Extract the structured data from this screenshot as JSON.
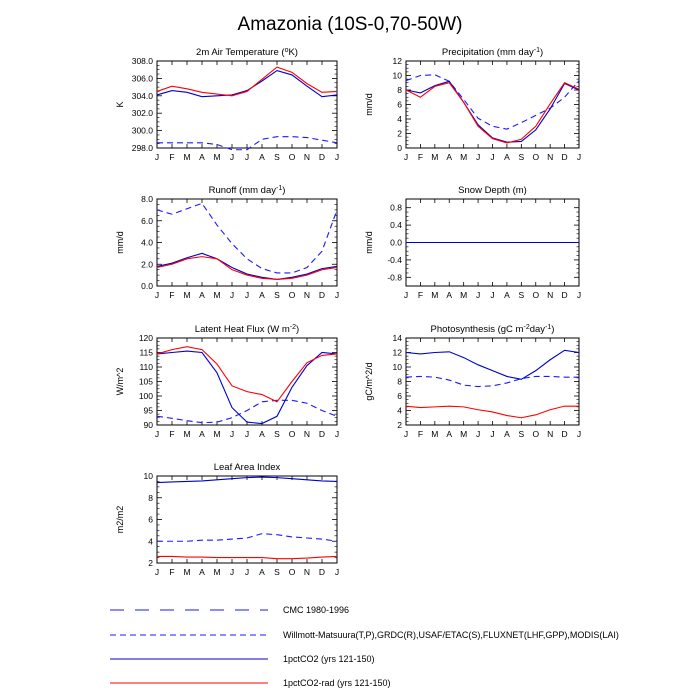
{
  "page": {
    "title": "Amazonia (10S-0,70-50W)"
  },
  "months": [
    "J",
    "F",
    "M",
    "A",
    "M",
    "J",
    "J",
    "A",
    "S",
    "O",
    "N",
    "D",
    "J"
  ],
  "legend": [
    {
      "label": "CMC 1980-1996",
      "color": "#1a1aff",
      "dash": "long"
    },
    {
      "label": "Willmott-Matsuura(T,P),GRDC(R),USAF/ETAC(S),FLUXNET(LHF,GPP),MODIS(LAI)",
      "color": "#1a1aff",
      "dash": "short"
    },
    {
      "label": "1pctCO2 (yrs 121-150)",
      "color": "#0000cc",
      "dash": "solid"
    },
    {
      "label": "1pctCO2-rad (yrs 121-150)",
      "color": "#ff0000",
      "dash": "solid"
    }
  ],
  "chart_data": [
    {
      "type": "line",
      "title": "2m Air Temperature (°K)",
      "title_main": "2m Air Temperature (",
      "title_sup": "o",
      "title_tail": "K)",
      "ylabel": "K",
      "ylim": [
        298,
        308
      ],
      "yticks": [
        298.0,
        300.0,
        302.0,
        304.0,
        306.0,
        308.0
      ],
      "ytick_labels": [
        "298.0",
        "300.0",
        "302.0",
        "304.0",
        "306.0",
        "308.0"
      ],
      "series": [
        {
          "color": "#1a1aff",
          "dash": "short",
          "values": [
            298.6,
            298.6,
            298.6,
            298.6,
            298.4,
            297.8,
            297.8,
            299.0,
            299.3,
            299.3,
            299.2,
            298.9,
            298.6
          ]
        },
        {
          "color": "#0000cc",
          "dash": "solid",
          "values": [
            304.1,
            304.6,
            304.4,
            303.9,
            304.0,
            304.1,
            304.6,
            305.7,
            306.9,
            306.4,
            305.1,
            303.9,
            304.1
          ]
        },
        {
          "color": "#ff0000",
          "dash": "solid",
          "values": [
            304.5,
            305.1,
            304.8,
            304.4,
            304.2,
            304.0,
            304.5,
            305.9,
            307.3,
            306.7,
            305.4,
            304.4,
            304.5
          ]
        }
      ]
    },
    {
      "type": "line",
      "title": "Precipitation (mm day-1)",
      "title_main": "Precipitation (mm day",
      "title_sup": "-1",
      "title_tail": ")",
      "ylabel": "mm/d",
      "ylim": [
        0,
        12
      ],
      "yticks": [
        0,
        2,
        4,
        6,
        8,
        10,
        12
      ],
      "ytick_labels": [
        "0",
        "2",
        "4",
        "6",
        "8",
        "10",
        "12"
      ],
      "series": [
        {
          "color": "#1a1aff",
          "dash": "short",
          "values": [
            9.3,
            10.0,
            10.1,
            9.2,
            6.7,
            4.1,
            3.0,
            2.6,
            3.5,
            4.5,
            5.5,
            7.0,
            9.3
          ]
        },
        {
          "color": "#0000cc",
          "dash": "solid",
          "values": [
            8.0,
            7.6,
            8.6,
            9.2,
            6.3,
            3.2,
            1.4,
            0.8,
            0.9,
            2.5,
            5.4,
            8.9,
            8.0
          ]
        },
        {
          "color": "#ff0000",
          "dash": "solid",
          "values": [
            8.0,
            7.0,
            8.5,
            9.0,
            6.3,
            3.0,
            1.3,
            0.7,
            1.2,
            3.0,
            6.1,
            9.0,
            8.1
          ]
        }
      ]
    },
    {
      "type": "line",
      "title": "Runoff (mm day-1)",
      "title_main": "Runoff (mm day",
      "title_sup": "-1",
      "title_tail": ")",
      "ylabel": "mm/d",
      "ylim": [
        0,
        8
      ],
      "yticks": [
        0,
        2,
        4,
        6,
        8
      ],
      "ytick_labels": [
        "0.0",
        "2.0",
        "4.0",
        "6.0",
        "8.0"
      ],
      "series": [
        {
          "color": "#1a1aff",
          "dash": "short",
          "values": [
            7.0,
            6.6,
            7.1,
            7.6,
            5.6,
            3.9,
            2.5,
            1.6,
            1.2,
            1.2,
            1.7,
            3.2,
            7.0
          ]
        },
        {
          "color": "#0000cc",
          "dash": "solid",
          "values": [
            1.8,
            2.1,
            2.6,
            3.0,
            2.5,
            1.7,
            1.1,
            0.8,
            0.6,
            0.8,
            1.1,
            1.6,
            1.8
          ]
        },
        {
          "color": "#ff0000",
          "dash": "solid",
          "values": [
            1.7,
            2.0,
            2.5,
            2.7,
            2.5,
            1.5,
            1.0,
            0.7,
            0.6,
            0.7,
            1.0,
            1.5,
            1.7
          ]
        }
      ]
    },
    {
      "type": "line",
      "title": "Snow Depth (m)",
      "title_main": "Snow Depth (m)",
      "title_sup": "",
      "title_tail": "",
      "ylabel": "mm/d",
      "ylim": [
        -1,
        1
      ],
      "yticks": [
        -0.8,
        -0.4,
        0.0,
        0.4,
        0.8
      ],
      "ytick_labels": [
        "-0.8",
        "-0.4",
        "0.0",
        "0.4",
        "0.8"
      ],
      "series": [
        {
          "color": "#1a1aff",
          "dash": "short",
          "values": [
            0,
            0,
            0,
            0,
            0,
            0,
            0,
            0,
            0,
            0,
            0,
            0,
            0
          ]
        },
        {
          "color": "#ff0000",
          "dash": "solid",
          "values": [
            0,
            0,
            0,
            0,
            0,
            0,
            0,
            0,
            0,
            0,
            0,
            0,
            0
          ]
        },
        {
          "color": "#0000cc",
          "dash": "solid",
          "values": [
            0,
            0,
            0,
            0,
            0,
            0,
            0,
            0,
            0,
            0,
            0,
            0,
            0
          ]
        }
      ]
    },
    {
      "type": "line",
      "title": "Latent Heat Flux (W m-2)",
      "title_main": "Latent Heat Flux (W m",
      "title_sup": "-2",
      "title_tail": ")",
      "ylabel": "W/m^2",
      "ylim": [
        90,
        120
      ],
      "yticks": [
        90,
        95,
        100,
        105,
        110,
        115,
        120
      ],
      "ytick_labels": [
        "90",
        "95",
        "100",
        "105",
        "110",
        "115",
        "120"
      ],
      "series": [
        {
          "color": "#1a1aff",
          "dash": "short",
          "values": [
            93.0,
            92.3,
            91.5,
            90.8,
            91.0,
            92.5,
            95.0,
            98.0,
            98.5,
            98.5,
            97.5,
            95.0,
            93.0
          ]
        },
        {
          "color": "#0000cc",
          "dash": "solid",
          "values": [
            114.5,
            115.0,
            115.5,
            115.0,
            108.0,
            96.0,
            91.0,
            90.5,
            93.0,
            103.0,
            110.5,
            115.0,
            114.5
          ]
        },
        {
          "color": "#ff0000",
          "dash": "solid",
          "values": [
            114.5,
            116.0,
            117.0,
            116.0,
            111.0,
            103.5,
            101.5,
            100.5,
            98.0,
            105.0,
            111.5,
            114.0,
            114.5
          ]
        }
      ]
    },
    {
      "type": "line",
      "title": "Photosynthesis (gC m-2day-1)",
      "title_main": "Photosynthesis (gC m",
      "title_sup": "-2",
      "title_tail": "day",
      "title_sup2": "-1",
      "title_tail2": ")",
      "ylabel": "gC/m^2/d",
      "ylim": [
        2,
        14
      ],
      "yticks": [
        2,
        4,
        6,
        8,
        10,
        12,
        14
      ],
      "ytick_labels": [
        "2",
        "4",
        "6",
        "8",
        "10",
        "12",
        "14"
      ],
      "series": [
        {
          "color": "#1a1aff",
          "dash": "short",
          "values": [
            8.6,
            8.7,
            8.6,
            8.2,
            7.5,
            7.3,
            7.4,
            7.8,
            8.4,
            8.7,
            8.7,
            8.6,
            8.6
          ]
        },
        {
          "color": "#0000cc",
          "dash": "solid",
          "values": [
            12.0,
            11.8,
            12.0,
            12.1,
            11.3,
            10.3,
            9.5,
            8.7,
            8.3,
            9.5,
            11.0,
            12.3,
            12.0
          ]
        },
        {
          "color": "#ff0000",
          "dash": "solid",
          "values": [
            4.6,
            4.4,
            4.5,
            4.6,
            4.5,
            4.1,
            3.8,
            3.3,
            3.0,
            3.4,
            4.1,
            4.6,
            4.6
          ]
        }
      ]
    },
    {
      "type": "line",
      "title": "Leaf Area Index",
      "title_main": "Leaf Area Index",
      "title_sup": "",
      "title_tail": "",
      "ylabel": "m2/m2",
      "ylim": [
        2,
        10
      ],
      "yticks": [
        2,
        4,
        6,
        8,
        10
      ],
      "ytick_labels": [
        "2",
        "4",
        "6",
        "8",
        "10"
      ],
      "series": [
        {
          "color": "#1a1aff",
          "dash": "short",
          "values": [
            4.0,
            4.0,
            4.0,
            4.1,
            4.1,
            4.2,
            4.3,
            4.7,
            4.6,
            4.4,
            4.3,
            4.2,
            4.0
          ]
        },
        {
          "color": "#0000cc",
          "dash": "solid",
          "values": [
            9.4,
            9.45,
            9.5,
            9.55,
            9.65,
            9.75,
            9.85,
            9.9,
            9.85,
            9.75,
            9.65,
            9.55,
            9.5
          ]
        },
        {
          "color": "#ff0000",
          "dash": "solid",
          "values": [
            2.6,
            2.6,
            2.55,
            2.55,
            2.5,
            2.5,
            2.5,
            2.5,
            2.4,
            2.4,
            2.45,
            2.55,
            2.6
          ]
        }
      ]
    }
  ]
}
